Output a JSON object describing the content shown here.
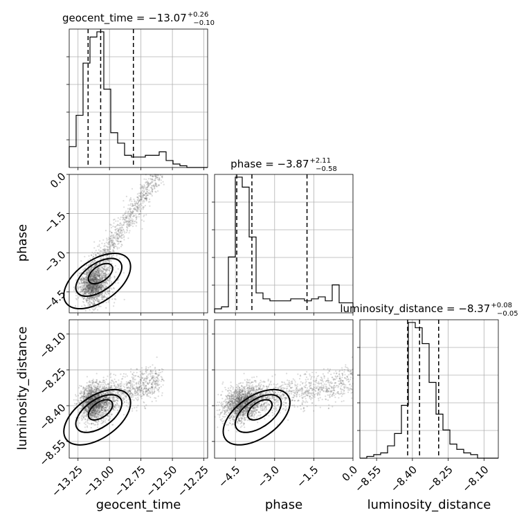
{
  "chart_data": {
    "type": "corner",
    "parameters": [
      {
        "name": "geocent_time",
        "label": "geocent_time",
        "title": "geocent_time = −13.07",
        "title_upper": "+0.26",
        "title_lower": "−0.10",
        "range": [
          -13.32,
          -12.22
        ],
        "ticks": [
          -13.25,
          -13.0,
          -12.75,
          -12.5,
          -12.25
        ],
        "tick_labels": [
          "−13.25",
          "−13.00",
          "−12.75",
          "−12.50",
          "−12.25"
        ],
        "quantiles": [
          -13.17,
          -13.07,
          -12.81
        ],
        "histogram": {
          "edges": [
            -13.32,
            -13.265,
            -13.21,
            -13.155,
            -13.1,
            -13.045,
            -12.99,
            -12.935,
            -12.88,
            -12.825,
            -12.77,
            -12.715,
            -12.66,
            -12.605,
            -12.55,
            -12.495,
            -12.44,
            -12.385,
            -12.33,
            -12.275,
            -12.22
          ],
          "counts": [
            12,
            30,
            60,
            75,
            78,
            45,
            20,
            14,
            7,
            6,
            6,
            7,
            7,
            9,
            4,
            2,
            1,
            0,
            0,
            0
          ]
        }
      },
      {
        "name": "phase",
        "label": "phase",
        "title": "phase = −3.87",
        "title_upper": "+2.11",
        "title_lower": "−0.58",
        "range": [
          -5.3,
          0.0
        ],
        "ticks": [
          -4.5,
          -3.0,
          -1.5,
          0.0
        ],
        "tick_labels": [
          "−4.5",
          "−3.0",
          "−1.5",
          "0.0"
        ],
        "quantiles": [
          -4.45,
          -3.87,
          -1.76
        ],
        "histogram": {
          "edges": [
            -5.3,
            -5.035,
            -4.77,
            -4.505,
            -4.24,
            -3.975,
            -3.71,
            -3.445,
            -3.18,
            -2.915,
            -2.65,
            -2.385,
            -2.12,
            -1.855,
            -1.59,
            -1.325,
            -1.06,
            -0.795,
            -0.53,
            -0.265,
            0.0
          ],
          "counts": [
            2,
            3,
            28,
            68,
            63,
            38,
            10,
            7,
            6,
            6,
            6,
            7,
            7,
            6,
            7,
            8,
            6,
            14,
            5,
            5
          ]
        }
      },
      {
        "name": "luminosity_distance",
        "label": "luminosity_distance",
        "title": "luminosity_distance = −8.37",
        "title_upper": "+0.08",
        "title_lower": "−0.05",
        "range": [
          -8.62,
          -8.04
        ],
        "ticks": [
          -8.55,
          -8.4,
          -8.25,
          -8.1
        ],
        "tick_labels": [
          "−8.55",
          "−8.40",
          "−8.25",
          "−8.10"
        ],
        "quantiles": [
          -8.42,
          -8.37,
          -8.29
        ],
        "histogram": {
          "edges": [
            -8.62,
            -8.591,
            -8.562,
            -8.533,
            -8.504,
            -8.475,
            -8.446,
            -8.417,
            -8.388,
            -8.359,
            -8.33,
            -8.301,
            -8.272,
            -8.243,
            -8.214,
            -8.185,
            -8.156,
            -8.127,
            -8.098,
            -8.069,
            -8.04
          ],
          "counts": [
            0,
            1,
            2,
            3,
            7,
            14,
            30,
            77,
            74,
            65,
            43,
            25,
            16,
            8,
            5,
            3,
            2,
            0,
            0,
            0
          ]
        }
      }
    ],
    "grid": true,
    "scatter_color": "#555555",
    "line_color": "#000000"
  }
}
